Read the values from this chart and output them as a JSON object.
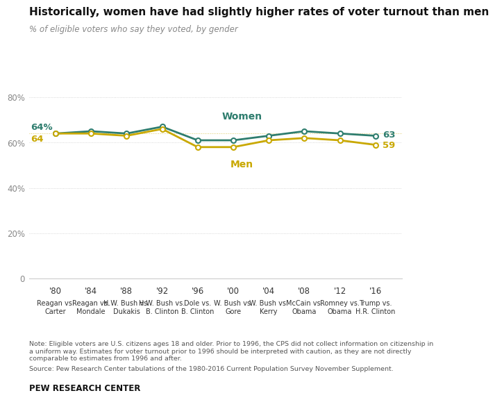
{
  "title": "Historically, women have had slightly higher rates of voter turnout than men",
  "subtitle": "% of eligible voters who say they voted, by gender",
  "years": [
    1980,
    1984,
    1988,
    1992,
    1996,
    2000,
    2004,
    2008,
    2012,
    2016
  ],
  "x_labels_year": [
    "'80",
    "'84",
    "'88",
    "'92",
    "'96",
    "'00",
    "'04",
    "'08",
    "'12",
    "'16"
  ],
  "x_labels_bottom": [
    "Reagan vs.\nCarter",
    "Reagan vs.\nMondale",
    "H.W. Bush vs.\nDukakis",
    "H.W. Bush vs.\nB. Clinton",
    "Dole vs.\nB. Clinton",
    "W. Bush vs.\nGore",
    "W. Bush vs.\nKerry",
    "McCain vs.\nObama",
    "Romney vs.\nObama",
    "Trump vs.\nH.R. Clinton"
  ],
  "women": [
    64,
    65,
    64,
    67,
    61,
    61,
    63,
    65,
    64,
    63
  ],
  "men": [
    64,
    64,
    63,
    66,
    58,
    58,
    61,
    62,
    61,
    59
  ],
  "women_color": "#2E7D6E",
  "men_color": "#C9A800",
  "bg_color": "#FFFFFF",
  "grid_color": "#CCCCCC",
  "ylim": [
    0,
    80
  ],
  "yticks": [
    0,
    20,
    40,
    60,
    80
  ],
  "note_text": "Note: Eligible voters are U.S. citizens ages 18 and older. Prior to 1996, the CPS did not collect information on citizenship in\na uniform way. Estimates for voter turnout prior to 1996 should be interpreted with caution, as they are not directly\ncomparable to estimates from 1996 and after.",
  "source_text": "Source: Pew Research Center tabulations of the 1980-2016 Current Population Survey November Supplement.",
  "branding": "PEW RESEARCH CENTER"
}
